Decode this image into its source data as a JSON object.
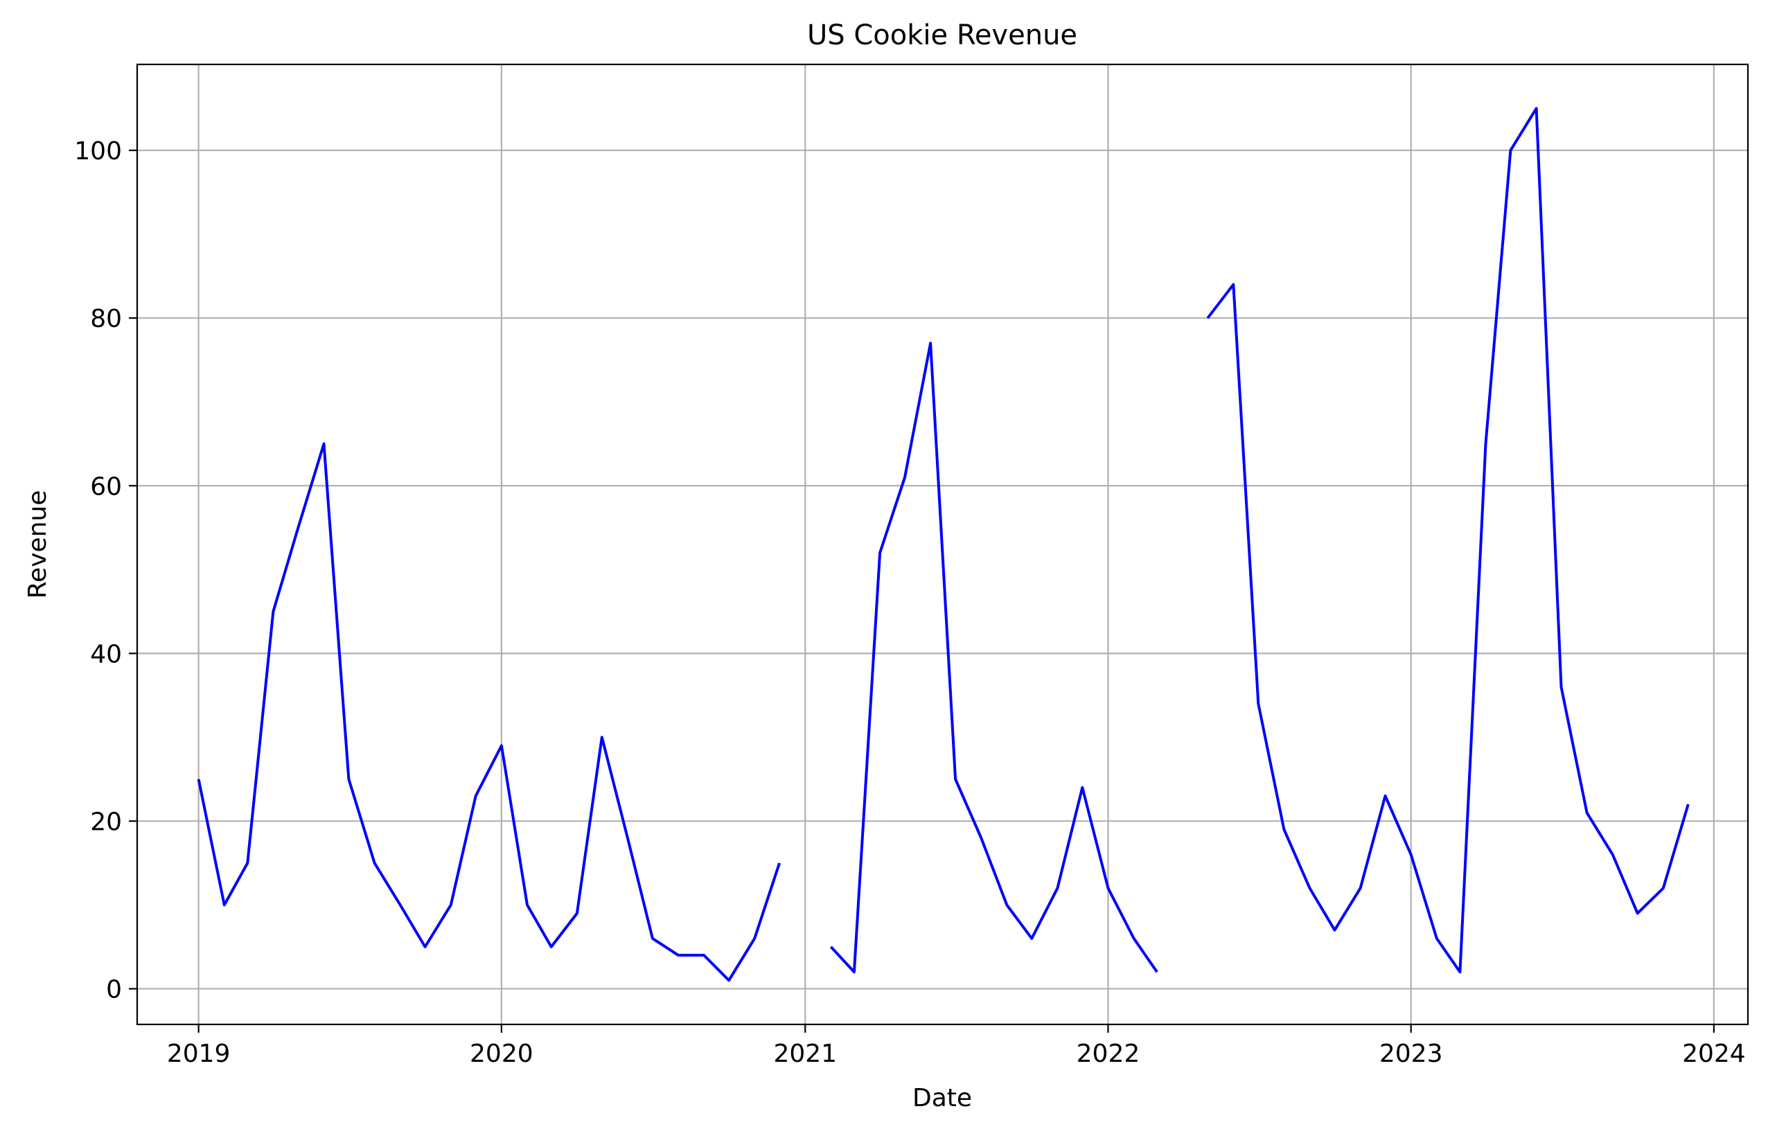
{
  "chart_data": {
    "type": "line",
    "title": "US Cookie Revenue",
    "xlabel": "Date",
    "ylabel": "Revenue",
    "xlim": [
      "2018-10-19",
      "2024-02-11"
    ],
    "ylim": [
      -4.25,
      110.25
    ],
    "x_ticks": [
      {
        "date": "2019-01-01",
        "label": "2019"
      },
      {
        "date": "2020-01-01",
        "label": "2020"
      },
      {
        "date": "2021-01-01",
        "label": "2021"
      },
      {
        "date": "2022-01-01",
        "label": "2022"
      },
      {
        "date": "2023-01-01",
        "label": "2023"
      },
      {
        "date": "2024-01-01",
        "label": "2024"
      }
    ],
    "y_ticks": [
      0,
      20,
      40,
      60,
      80,
      100
    ],
    "grid": true,
    "line_color": "#0000ff",
    "series": [
      {
        "x": [
          "2019-01",
          "2019-02",
          "2019-03",
          "2019-04",
          "2019-05",
          "2019-06",
          "2019-07",
          "2019-08",
          "2019-09",
          "2019-10",
          "2019-11",
          "2019-12",
          "2020-01",
          "2020-02",
          "2020-03",
          "2020-04",
          "2020-05",
          "2020-06",
          "2020-07",
          "2020-08",
          "2020-09",
          "2020-10",
          "2020-11",
          "2020-12",
          "2021-01",
          "2021-02",
          "2021-03",
          "2021-04",
          "2021-05",
          "2021-06",
          "2021-07",
          "2021-08",
          "2021-09",
          "2021-10",
          "2021-11",
          "2021-12",
          "2022-01",
          "2022-02",
          "2022-03",
          "2022-04",
          "2022-05",
          "2022-06",
          "2022-07",
          "2022-08",
          "2022-09",
          "2022-10",
          "2022-11",
          "2022-12",
          "2023-01",
          "2023-02",
          "2023-03",
          "2023-04",
          "2023-05",
          "2023-06",
          "2023-07",
          "2023-08",
          "2023-09",
          "2023-10",
          "2023-11",
          "2023-12"
        ],
        "values": [
          25,
          10,
          15,
          45,
          55,
          65,
          25,
          15,
          10,
          5,
          10,
          23,
          29,
          10,
          5,
          9,
          30,
          18,
          6,
          4,
          4,
          1,
          6,
          15,
          null,
          5,
          2,
          52,
          61,
          77,
          25,
          18,
          10,
          6,
          12,
          24,
          12,
          6,
          2,
          null,
          80,
          84,
          34,
          19,
          12,
          7,
          12,
          23,
          16,
          6,
          2,
          65,
          100,
          105,
          36,
          21,
          16,
          9,
          12,
          22
        ]
      }
    ]
  }
}
